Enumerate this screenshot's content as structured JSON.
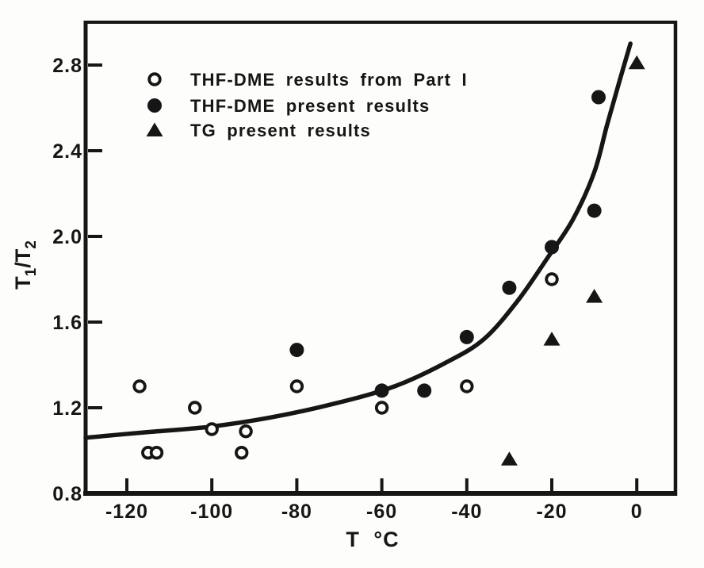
{
  "figure": {
    "background": "#fdfdfb",
    "ink": "#161616"
  },
  "axes": {
    "x_label": "T °C",
    "y_label": "T1/T2",
    "y_label_rich": [
      {
        "text": "T",
        "sub": false
      },
      {
        "text": "1",
        "sub": true
      },
      {
        "text": "/T",
        "sub": false
      },
      {
        "text": "2",
        "sub": true
      }
    ],
    "x_tick_labels": [
      "-120",
      "-100",
      "-80",
      "-60",
      "-40",
      "-20",
      "0"
    ],
    "y_tick_labels": [
      "0.8",
      "1.2",
      "1.6",
      "2.0",
      "2.4",
      "2.8"
    ]
  },
  "legend": {
    "items": [
      {
        "marker": "open-circle",
        "label": "THF-DME results from Part I"
      },
      {
        "marker": "filled-circle",
        "label": "THF-DME present results"
      },
      {
        "marker": "filled-triangle",
        "label": "TG present results"
      }
    ]
  },
  "chart_data": {
    "type": "scatter",
    "title": "",
    "xlabel": "T °C",
    "ylabel": "T1/T2",
    "xlim": [
      -129.7,
      9.1
    ],
    "ylim": [
      0.8,
      3.0
    ],
    "x_ticks": [
      -120,
      -100,
      -80,
      -60,
      -40,
      -20,
      0
    ],
    "y_ticks": [
      0.8,
      1.2,
      1.6,
      2.0,
      2.4,
      2.8
    ],
    "grid": false,
    "legend_position": "upper left inside",
    "series": [
      {
        "name": "THF-DME results from Part I",
        "marker": "open-circle",
        "points": [
          [
            -117,
            1.3
          ],
          [
            -115,
            0.99
          ],
          [
            -113,
            0.99
          ],
          [
            -104,
            1.2
          ],
          [
            -100,
            1.1
          ],
          [
            -93,
            0.99
          ],
          [
            -92,
            1.09
          ],
          [
            -80,
            1.3
          ],
          [
            -60,
            1.2
          ],
          [
            -40,
            1.3
          ],
          [
            -20,
            1.8
          ]
        ]
      },
      {
        "name": "THF-DME present results",
        "marker": "filled-circle",
        "points": [
          [
            -80,
            1.47
          ],
          [
            -60,
            1.28
          ],
          [
            -50,
            1.28
          ],
          [
            -40,
            1.53
          ],
          [
            -30,
            1.76
          ],
          [
            -20,
            1.95
          ],
          [
            -10,
            2.12
          ],
          [
            -9,
            2.65
          ]
        ]
      },
      {
        "name": "TG present results",
        "marker": "filled-triangle",
        "points": [
          [
            -30,
            0.96
          ],
          [
            -20,
            1.52
          ],
          [
            -10,
            1.72
          ],
          [
            0,
            2.81
          ]
        ]
      }
    ],
    "fit_curve": [
      [
        -129.7,
        1.06
      ],
      [
        -116,
        1.085
      ],
      [
        -101,
        1.11
      ],
      [
        -86,
        1.155
      ],
      [
        -71,
        1.22
      ],
      [
        -57,
        1.3
      ],
      [
        -45,
        1.41
      ],
      [
        -36,
        1.52
      ],
      [
        -28,
        1.7
      ],
      [
        -21,
        1.9
      ],
      [
        -15,
        2.08
      ],
      [
        -10,
        2.3
      ],
      [
        -7,
        2.52
      ],
      [
        -4,
        2.73
      ],
      [
        -1.5,
        2.9
      ]
    ]
  }
}
